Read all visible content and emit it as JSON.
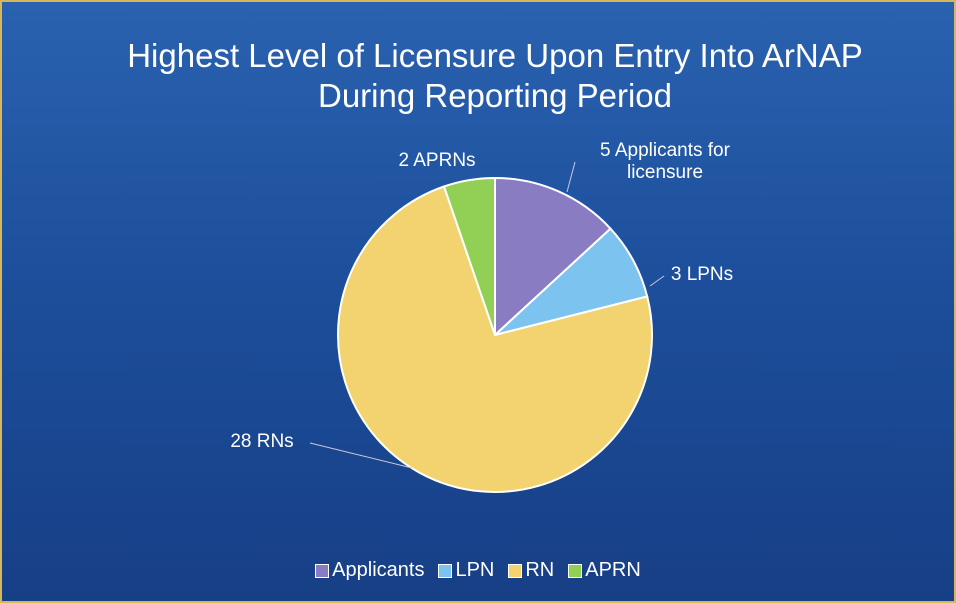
{
  "chart_data": {
    "type": "pie",
    "title": "Highest Level of Licensure Upon Entry Into ArNAP During Reporting Period",
    "categories": [
      "Applicants",
      "LPN",
      "RN",
      "APRN"
    ],
    "values": [
      5,
      3,
      28,
      2
    ],
    "value_labels": [
      "5 Applicants for licensure",
      "3 LPNs",
      "28 RNs",
      "2 APRNs"
    ],
    "colors": [
      "#8a7cc2",
      "#7dc3ef",
      "#f2d36f",
      "#92cf55"
    ],
    "legend": "bottom"
  }
}
